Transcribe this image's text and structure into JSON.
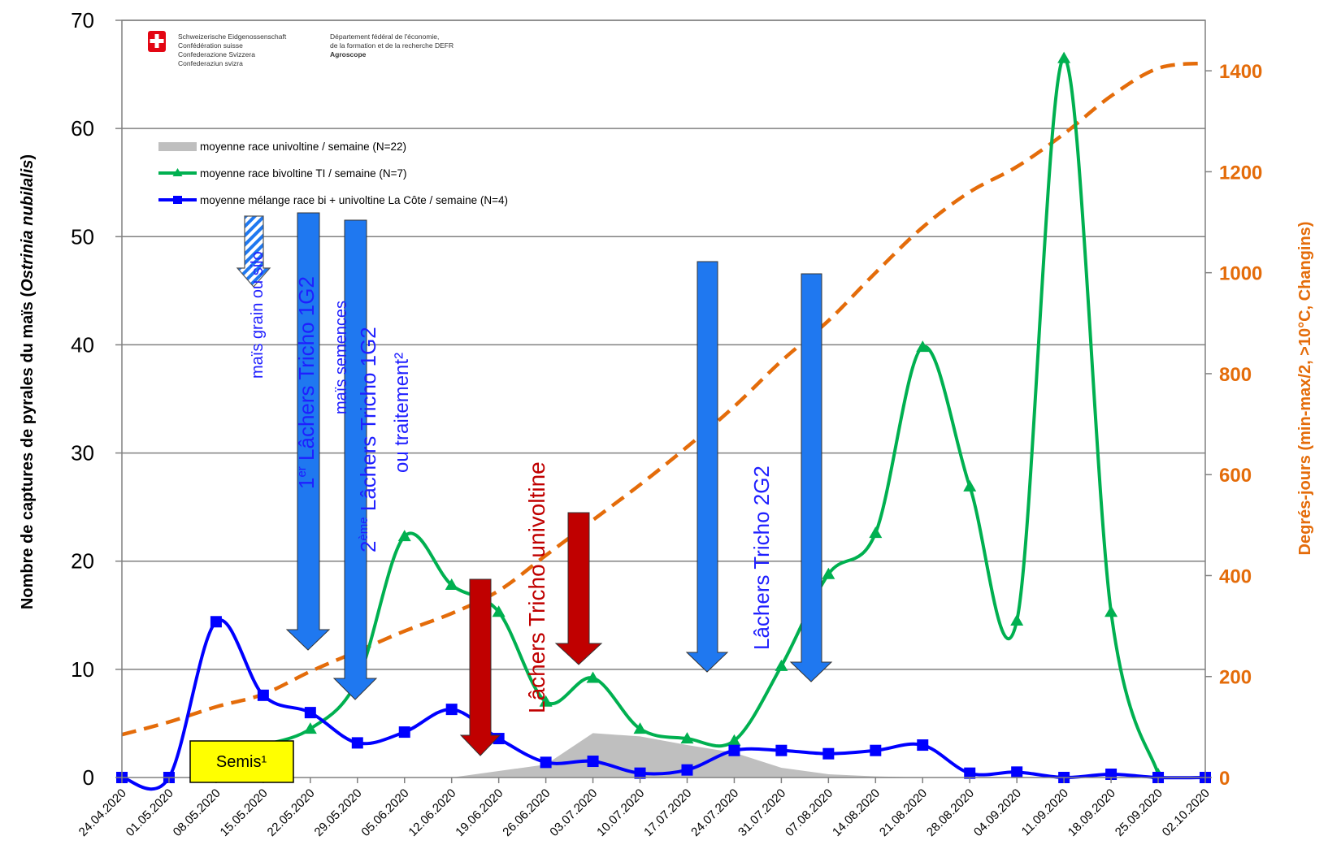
{
  "chart_data": {
    "type": "line",
    "title": "",
    "ylabel": "Nombre de captures de pyrales du maïs (Ostrinia nubilalis)",
    "ylabel_main": "Nombre de captures de pyrales du maïs (",
    "ylabel_italic": "Ostrinia nubilalis",
    "ylabel_end": ")",
    "y2label": "Degrés-jours (min-max/2, >10°C, Changins)",
    "ylim": [
      0,
      70
    ],
    "y2lim": [
      0,
      1500
    ],
    "yticks": [
      "0",
      "10",
      "20",
      "30",
      "40",
      "50",
      "60",
      "70"
    ],
    "y2ticks": [
      "0",
      "200",
      "400",
      "600",
      "800",
      "1000",
      "1200",
      "1400"
    ],
    "categories": [
      "24.04.2020",
      "01.05.2020",
      "08.05.2020",
      "15.05.2020",
      "22.05.2020",
      "29.05.2020",
      "05.06.2020",
      "12.06.2020",
      "19.06.2020",
      "26.06.2020",
      "03.07.2020",
      "10.07.2020",
      "17.07.2020",
      "24.07.2020",
      "31.07.2020",
      "07.08.2020",
      "14.08.2020",
      "21.08.2020",
      "28.08.2020",
      "04.09.2020",
      "11.09.2020",
      "18.09.2020",
      "25.09.2020",
      "02.10.2020"
    ],
    "series": [
      {
        "name": "moyenne race univoltine / semaine (N=22)",
        "type": "area",
        "color": "#BFBFBF",
        "axis": "left",
        "values": [
          null,
          null,
          null,
          null,
          null,
          null,
          null,
          0,
          0.6,
          1.2,
          4.1,
          3.8,
          3.0,
          2.3,
          0.9,
          0.3,
          0.1,
          0,
          0,
          0,
          0,
          0,
          0,
          0
        ]
      },
      {
        "name": "moyenne race bivoltine TI / semaine (N=7)",
        "type": "line",
        "color": "#00B050",
        "marker": "triangle",
        "axis": "left",
        "values": [
          null,
          null,
          null,
          3.0,
          4.5,
          9.0,
          22.3,
          17.8,
          15.3,
          7.0,
          9.2,
          4.5,
          3.6,
          3.4,
          10.3,
          18.8,
          22.6,
          39.8,
          26.9,
          14.5,
          66.5,
          15.3,
          0.3,
          null
        ]
      },
      {
        "name": "moyenne mélange race bi + univoltine La Côte / semaine (N=4)",
        "type": "line",
        "color": "#0000FF",
        "marker": "square",
        "axis": "left",
        "values": [
          0,
          0,
          14.4,
          7.6,
          6.0,
          3.2,
          4.2,
          6.3,
          3.6,
          1.4,
          1.5,
          0.4,
          0.7,
          2.5,
          2.5,
          2.2,
          2.5,
          3.0,
          0.4,
          0.5,
          0,
          0.3,
          0,
          0
        ]
      },
      {
        "name": "",
        "type": "line",
        "dashed": true,
        "color": "#E46C0A",
        "axis": "right",
        "values": [
          85,
          110,
          140,
          165,
          210,
          250,
          290,
          325,
          370,
          440,
          510,
          580,
          655,
          735,
          825,
          905,
          1000,
          1090,
          1160,
          1210,
          1275,
          1350,
          1405,
          1415
        ]
      }
    ],
    "legend_position": "top-left",
    "grid": true
  },
  "annotations": {
    "arrow_grain": "maïs grain ou silo",
    "arrow1_prefix": "1",
    "arrow1_sup": "er",
    "arrow1_main": " Lâchers Tricho 1G2",
    "arrow2_top": "maïs semences",
    "arrow2_prefix": "2",
    "arrow2_sup": "ème",
    "arrow2_main": " Lâchers Tricho 1G2",
    "arrow2_bottom": "ou traitement²",
    "red_label": "Lâchers Tricho univoltine",
    "blue2_label": "Lâchers Tricho 2G2",
    "semis": "Semis¹"
  },
  "logo": {
    "col1": [
      "Schweizerische Eidgenossenschaft",
      "Confédération suisse",
      "Confederazione Svizzera",
      "Confederaziun svizra"
    ],
    "col2": [
      "Département fédéral de l'économie,",
      "de la formation et de la recherche DEFR",
      "Agroscope"
    ]
  },
  "colors": {
    "grid": "#808080",
    "right_axis": "#E46C0A",
    "blue_arrow": "#1F78F0",
    "red_arrow": "#C00000",
    "semis_box": "#FFFF00"
  }
}
